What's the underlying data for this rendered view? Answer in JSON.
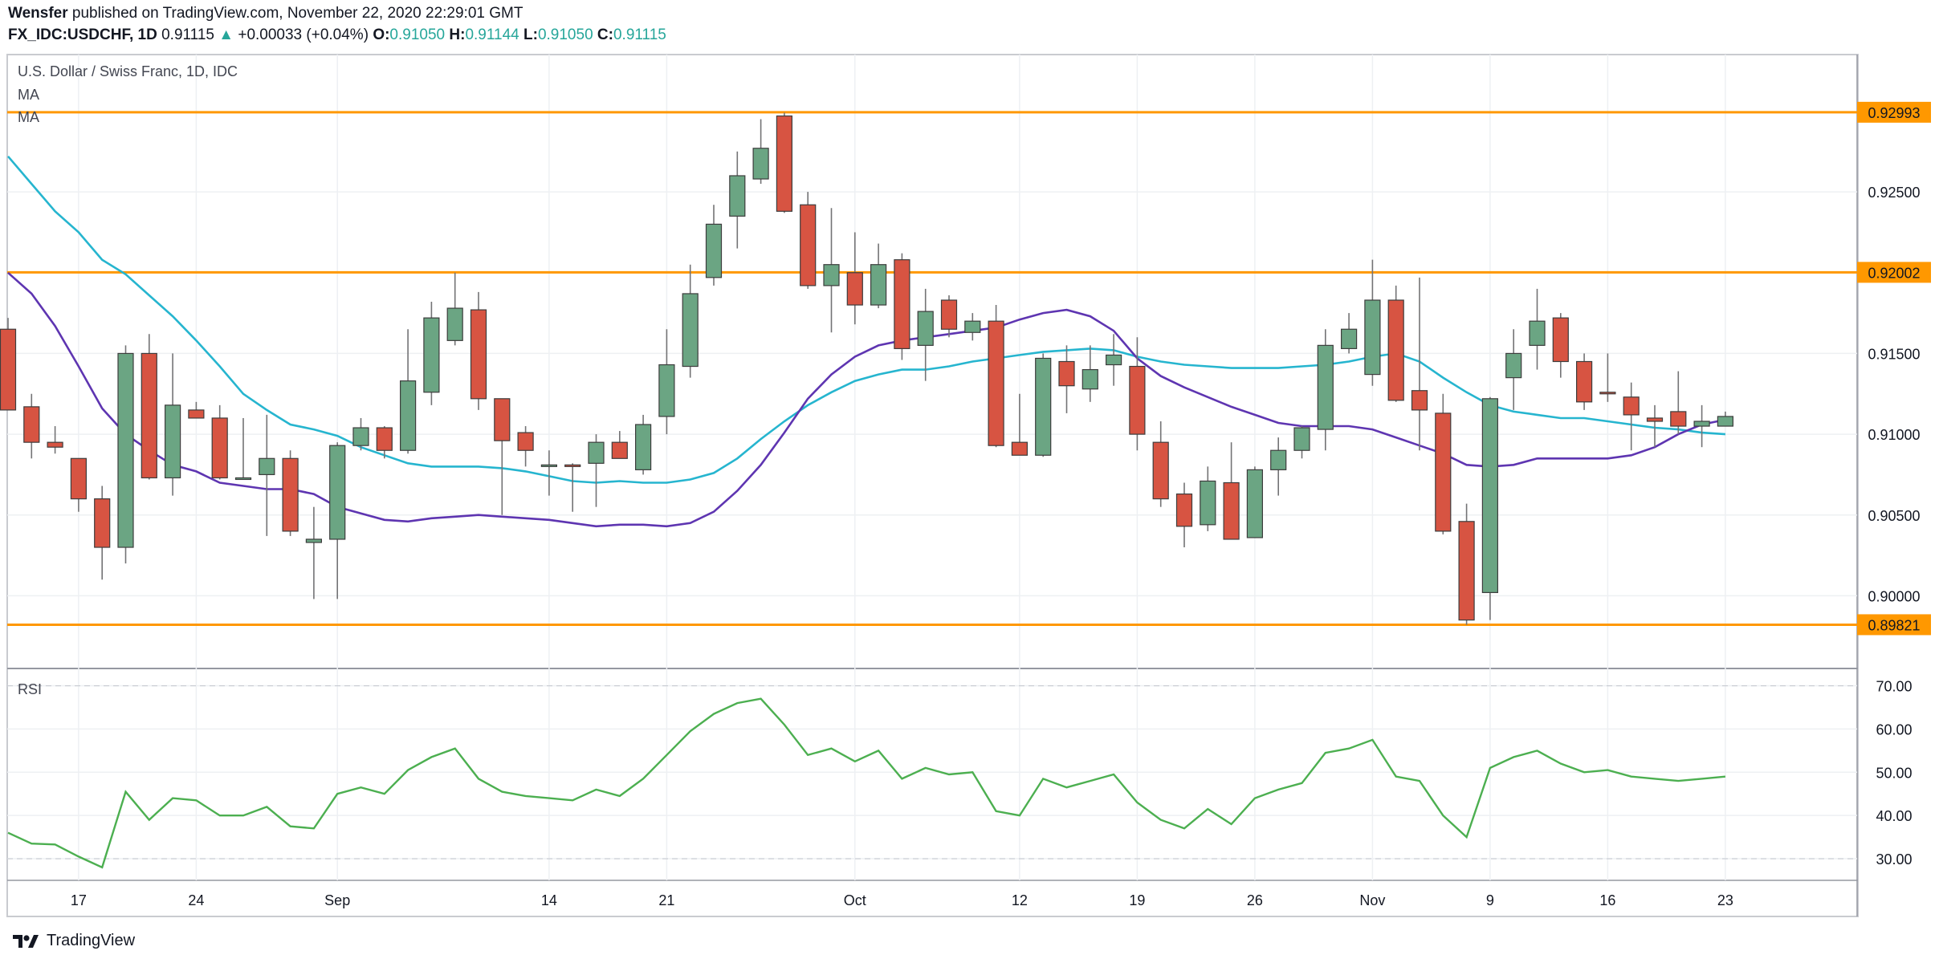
{
  "header": {
    "publisher": "Wensfer",
    "published_text": "published on TradingView.com, November 22, 2020 22:29:01 GMT",
    "symbol": "FX_IDC:USDCHF, 1D",
    "last": "0.91115",
    "change": "+0.00033 (+0.04%)",
    "o_label": "O:",
    "o": "0.91050",
    "h_label": "H:",
    "h": "0.91144",
    "l_label": "L:",
    "l": "0.91050",
    "c_label": "C:",
    "c": "0.91115"
  },
  "legend": {
    "title": "U.S. Dollar / Swiss Franc, 1D, IDC",
    "ma1": "MA",
    "ma2": "MA",
    "rsi": "RSI"
  },
  "footer": {
    "brand": "TradingView",
    "icon": "tradingview-logo-icon"
  },
  "colors": {
    "up": "#6ba583",
    "down": "#d75442",
    "ma_fast": "#5e35b1",
    "ma_slow": "#26b5cf",
    "rsi": "#4caf50",
    "level": "#ff9800"
  },
  "chart_data": [
    {
      "type": "candlestick",
      "ylim": [
        0.8955,
        0.9335
      ],
      "yticks": [
        "0.92500",
        "0.91500",
        "0.91000",
        "0.90500",
        "0.90000"
      ],
      "xticks": [
        "17",
        "24",
        "Sep",
        "14",
        "21",
        "Oct",
        "12",
        "19",
        "26",
        "Nov",
        "9",
        "16",
        "23"
      ],
      "levels": [
        "0.92993",
        "0.92002",
        "0.89821"
      ],
      "grid": true,
      "candles": [
        {
          "o": 0.9165,
          "h": 0.9172,
          "l": 0.9115,
          "c": 0.9115
        },
        {
          "o": 0.9117,
          "h": 0.9125,
          "l": 0.9085,
          "c": 0.9095
        },
        {
          "o": 0.9095,
          "h": 0.9105,
          "l": 0.9088,
          "c": 0.9092
        },
        {
          "o": 0.9085,
          "h": 0.9085,
          "l": 0.9052,
          "c": 0.906
        },
        {
          "o": 0.906,
          "h": 0.9068,
          "l": 0.901,
          "c": 0.903
        },
        {
          "o": 0.903,
          "h": 0.9155,
          "l": 0.902,
          "c": 0.915
        },
        {
          "o": 0.915,
          "h": 0.9162,
          "l": 0.9072,
          "c": 0.9073
        },
        {
          "o": 0.9073,
          "h": 0.915,
          "l": 0.9062,
          "c": 0.9118
        },
        {
          "o": 0.9115,
          "h": 0.912,
          "l": 0.911,
          "c": 0.911
        },
        {
          "o": 0.911,
          "h": 0.9118,
          "l": 0.9072,
          "c": 0.9073
        },
        {
          "o": 0.9073,
          "h": 0.911,
          "l": 0.9072,
          "c": 0.9073
        },
        {
          "o": 0.9075,
          "h": 0.9112,
          "l": 0.9037,
          "c": 0.9085
        },
        {
          "o": 0.9085,
          "h": 0.909,
          "l": 0.9037,
          "c": 0.904
        },
        {
          "o": 0.9033,
          "h": 0.9055,
          "l": 0.8998,
          "c": 0.9035
        },
        {
          "o": 0.9035,
          "h": 0.9095,
          "l": 0.8998,
          "c": 0.9093
        },
        {
          "o": 0.9093,
          "h": 0.911,
          "l": 0.909,
          "c": 0.9104
        },
        {
          "o": 0.9104,
          "h": 0.9105,
          "l": 0.9085,
          "c": 0.909
        },
        {
          "o": 0.909,
          "h": 0.9165,
          "l": 0.9088,
          "c": 0.9133
        },
        {
          "o": 0.9126,
          "h": 0.9182,
          "l": 0.9118,
          "c": 0.9172
        },
        {
          "o": 0.9158,
          "h": 0.92,
          "l": 0.9155,
          "c": 0.9178
        },
        {
          "o": 0.9177,
          "h": 0.9188,
          "l": 0.9115,
          "c": 0.9122
        },
        {
          "o": 0.9122,
          "h": 0.9122,
          "l": 0.905,
          "c": 0.9096
        },
        {
          "o": 0.9101,
          "h": 0.9105,
          "l": 0.908,
          "c": 0.909
        },
        {
          "o": 0.9081,
          "h": 0.909,
          "l": 0.9062,
          "c": 0.9081
        },
        {
          "o": 0.9081,
          "h": 0.9082,
          "l": 0.9052,
          "c": 0.908
        },
        {
          "o": 0.9082,
          "h": 0.91,
          "l": 0.9055,
          "c": 0.9095
        },
        {
          "o": 0.9095,
          "h": 0.9102,
          "l": 0.9085,
          "c": 0.9085
        },
        {
          "o": 0.9078,
          "h": 0.9112,
          "l": 0.9075,
          "c": 0.9106
        },
        {
          "o": 0.9111,
          "h": 0.9165,
          "l": 0.91,
          "c": 0.9143
        },
        {
          "o": 0.9142,
          "h": 0.9205,
          "l": 0.9135,
          "c": 0.9187
        },
        {
          "o": 0.9197,
          "h": 0.9242,
          "l": 0.9192,
          "c": 0.923
        },
        {
          "o": 0.9235,
          "h": 0.9275,
          "l": 0.9215,
          "c": 0.926
        },
        {
          "o": 0.9258,
          "h": 0.9295,
          "l": 0.9255,
          "c": 0.9277
        },
        {
          "o": 0.9297,
          "h": 0.9299,
          "l": 0.9237,
          "c": 0.9238
        },
        {
          "o": 0.9242,
          "h": 0.925,
          "l": 0.919,
          "c": 0.9192
        },
        {
          "o": 0.9192,
          "h": 0.924,
          "l": 0.9163,
          "c": 0.9205
        },
        {
          "o": 0.92,
          "h": 0.9225,
          "l": 0.9168,
          "c": 0.918
        },
        {
          "o": 0.918,
          "h": 0.9218,
          "l": 0.9178,
          "c": 0.9205
        },
        {
          "o": 0.9208,
          "h": 0.9212,
          "l": 0.9146,
          "c": 0.9153
        },
        {
          "o": 0.9155,
          "h": 0.919,
          "l": 0.9133,
          "c": 0.9176
        },
        {
          "o": 0.9183,
          "h": 0.9186,
          "l": 0.916,
          "c": 0.9165
        },
        {
          "o": 0.9163,
          "h": 0.9175,
          "l": 0.9158,
          "c": 0.917
        },
        {
          "o": 0.917,
          "h": 0.918,
          "l": 0.9092,
          "c": 0.9093
        },
        {
          "o": 0.9095,
          "h": 0.9125,
          "l": 0.9087,
          "c": 0.9087
        },
        {
          "o": 0.9087,
          "h": 0.915,
          "l": 0.9086,
          "c": 0.9147
        },
        {
          "o": 0.9145,
          "h": 0.9155,
          "l": 0.9113,
          "c": 0.913
        },
        {
          "o": 0.9128,
          "h": 0.9155,
          "l": 0.912,
          "c": 0.914
        },
        {
          "o": 0.9143,
          "h": 0.9162,
          "l": 0.913,
          "c": 0.9149
        },
        {
          "o": 0.9142,
          "h": 0.916,
          "l": 0.909,
          "c": 0.91
        },
        {
          "o": 0.9095,
          "h": 0.9108,
          "l": 0.9055,
          "c": 0.906
        },
        {
          "o": 0.9063,
          "h": 0.907,
          "l": 0.903,
          "c": 0.9043
        },
        {
          "o": 0.9044,
          "h": 0.908,
          "l": 0.904,
          "c": 0.9071
        },
        {
          "o": 0.907,
          "h": 0.9095,
          "l": 0.9035,
          "c": 0.9035
        },
        {
          "o": 0.9036,
          "h": 0.908,
          "l": 0.9036,
          "c": 0.9078
        },
        {
          "o": 0.9078,
          "h": 0.9098,
          "l": 0.9062,
          "c": 0.909
        },
        {
          "o": 0.909,
          "h": 0.9105,
          "l": 0.9085,
          "c": 0.9104
        },
        {
          "o": 0.9103,
          "h": 0.9165,
          "l": 0.909,
          "c": 0.9155
        },
        {
          "o": 0.9153,
          "h": 0.9175,
          "l": 0.915,
          "c": 0.9165
        },
        {
          "o": 0.9137,
          "h": 0.9208,
          "l": 0.913,
          "c": 0.9183
        },
        {
          "o": 0.9183,
          "h": 0.9192,
          "l": 0.912,
          "c": 0.9121
        },
        {
          "o": 0.9127,
          "h": 0.9197,
          "l": 0.909,
          "c": 0.9115
        },
        {
          "o": 0.9113,
          "h": 0.9125,
          "l": 0.9038,
          "c": 0.904
        },
        {
          "o": 0.9046,
          "h": 0.9057,
          "l": 0.8982,
          "c": 0.8985
        },
        {
          "o": 0.9002,
          "h": 0.9123,
          "l": 0.8985,
          "c": 0.9122
        },
        {
          "o": 0.9135,
          "h": 0.9165,
          "l": 0.9115,
          "c": 0.915
        },
        {
          "o": 0.9155,
          "h": 0.919,
          "l": 0.914,
          "c": 0.917
        },
        {
          "o": 0.9172,
          "h": 0.9175,
          "l": 0.9135,
          "c": 0.9145
        },
        {
          "o": 0.9145,
          "h": 0.915,
          "l": 0.9115,
          "c": 0.912
        },
        {
          "o": 0.9126,
          "h": 0.915,
          "l": 0.912,
          "c": 0.9125
        },
        {
          "o": 0.9123,
          "h": 0.9132,
          "l": 0.909,
          "c": 0.9112
        },
        {
          "o": 0.911,
          "h": 0.9118,
          "l": 0.9092,
          "c": 0.9108
        },
        {
          "o": 0.9114,
          "h": 0.9139,
          "l": 0.91,
          "c": 0.9105
        },
        {
          "o": 0.9105,
          "h": 0.9118,
          "l": 0.9092,
          "c": 0.9108
        },
        {
          "o": 0.9105,
          "h": 0.9114,
          "l": 0.9105,
          "c": 0.9111
        }
      ],
      "ma_fast": [
        0.92,
        0.9187,
        0.9167,
        0.9142,
        0.9116,
        0.91,
        0.909,
        0.9081,
        0.9077,
        0.907,
        0.9068,
        0.9066,
        0.9066,
        0.9063,
        0.9055,
        0.9051,
        0.9047,
        0.9046,
        0.9048,
        0.9049,
        0.905,
        0.9049,
        0.9048,
        0.9047,
        0.9045,
        0.9043,
        0.9044,
        0.9044,
        0.9043,
        0.9045,
        0.9052,
        0.9065,
        0.9081,
        0.9101,
        0.9122,
        0.9137,
        0.9148,
        0.9155,
        0.9158,
        0.916,
        0.9162,
        0.9164,
        0.9166,
        0.9171,
        0.9175,
        0.9177,
        0.9173,
        0.9164,
        0.9147,
        0.9136,
        0.9129,
        0.9123,
        0.9117,
        0.9112,
        0.9107,
        0.9105,
        0.9105,
        0.9105,
        0.9103,
        0.9098,
        0.9093,
        0.9088,
        0.9081,
        0.908,
        0.9081,
        0.9085,
        0.9085,
        0.9085,
        0.9085,
        0.9087,
        0.9092,
        0.91,
        0.9106,
        0.9109
      ],
      "ma_slow": [
        0.9272,
        0.9255,
        0.9238,
        0.9225,
        0.9208,
        0.9199,
        0.9186,
        0.9173,
        0.9158,
        0.9142,
        0.9125,
        0.9115,
        0.9106,
        0.9103,
        0.9099,
        0.9092,
        0.9087,
        0.9082,
        0.908,
        0.908,
        0.908,
        0.9079,
        0.9077,
        0.9074,
        0.9071,
        0.907,
        0.9071,
        0.907,
        0.907,
        0.9072,
        0.9076,
        0.9085,
        0.9097,
        0.9108,
        0.9118,
        0.9126,
        0.9133,
        0.9137,
        0.914,
        0.914,
        0.9142,
        0.9145,
        0.9147,
        0.9149,
        0.9151,
        0.9152,
        0.9153,
        0.9152,
        0.9148,
        0.9145,
        0.9143,
        0.9142,
        0.9141,
        0.9141,
        0.9141,
        0.9142,
        0.9143,
        0.9145,
        0.9148,
        0.915,
        0.9145,
        0.9135,
        0.9126,
        0.9118,
        0.9114,
        0.9112,
        0.911,
        0.911,
        0.9108,
        0.9106,
        0.9104,
        0.9103,
        0.9101,
        0.91
      ]
    },
    {
      "type": "line",
      "title": "RSI",
      "ylim": [
        25,
        74
      ],
      "yticks": [
        "70.00",
        "60.00",
        "50.00",
        "40.00",
        "30.00"
      ],
      "values": [
        36,
        33.5,
        33.3,
        30.5,
        28,
        45.5,
        39,
        44,
        43.5,
        40,
        40,
        42,
        37.5,
        37,
        45,
        46.5,
        45,
        50.5,
        53.5,
        55.5,
        48.5,
        45.5,
        44.5,
        44,
        43.5,
        46,
        44.5,
        48.5,
        54,
        59.5,
        63.5,
        66,
        67,
        61,
        54,
        55.5,
        52.5,
        55,
        48.5,
        51,
        49.5,
        50,
        41,
        40,
        48.5,
        46.5,
        48,
        49.5,
        43,
        39,
        37,
        41.5,
        38,
        44,
        46,
        47.5,
        54.5,
        55.5,
        57.5,
        49,
        48,
        40,
        35,
        51,
        53.5,
        55,
        52,
        50,
        50.5,
        49,
        48.5,
        48,
        48.5,
        49
      ]
    }
  ]
}
